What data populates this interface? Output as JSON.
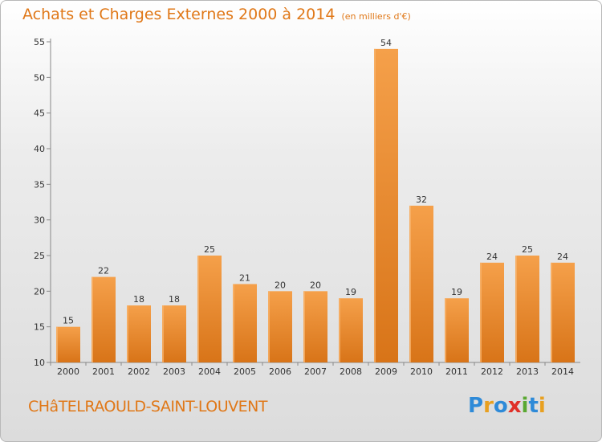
{
  "title": "Achats et Charges Externes 2000 à 2014",
  "subtitle": "(en milliers d'€)",
  "footer": {
    "city": "CHâTELRAOULD-SAINT-LOUVENT"
  },
  "logo": {
    "letters": [
      "P",
      "r",
      "o",
      "x",
      "i",
      "t",
      "i"
    ],
    "colors": [
      "#2e8ad8",
      "#e8a020",
      "#2e8ad8",
      "#e03028",
      "#5aa832",
      "#2e8ad8",
      "#e8a020"
    ]
  },
  "colors": {
    "bar_light": "#f5a04a",
    "bar_dark": "#d87418",
    "accent": "#e07818"
  },
  "chart_data": {
    "type": "bar",
    "title": "Achats et Charges Externes 2000 à 2014",
    "subtitle": "(en milliers d'€)",
    "xlabel": "",
    "ylabel": "",
    "categories": [
      "2000",
      "2001",
      "2002",
      "2003",
      "2004",
      "2005",
      "2006",
      "2007",
      "2008",
      "2009",
      "2010",
      "2011",
      "2012",
      "2013",
      "2014"
    ],
    "values": [
      15,
      22,
      18,
      18,
      25,
      21,
      20,
      20,
      19,
      54,
      32,
      19,
      24,
      25,
      24
    ],
    "ylim": [
      10,
      55
    ],
    "yticks": [
      10,
      15,
      20,
      25,
      30,
      35,
      40,
      45,
      50,
      55
    ],
    "grid": false,
    "legend": "none"
  }
}
